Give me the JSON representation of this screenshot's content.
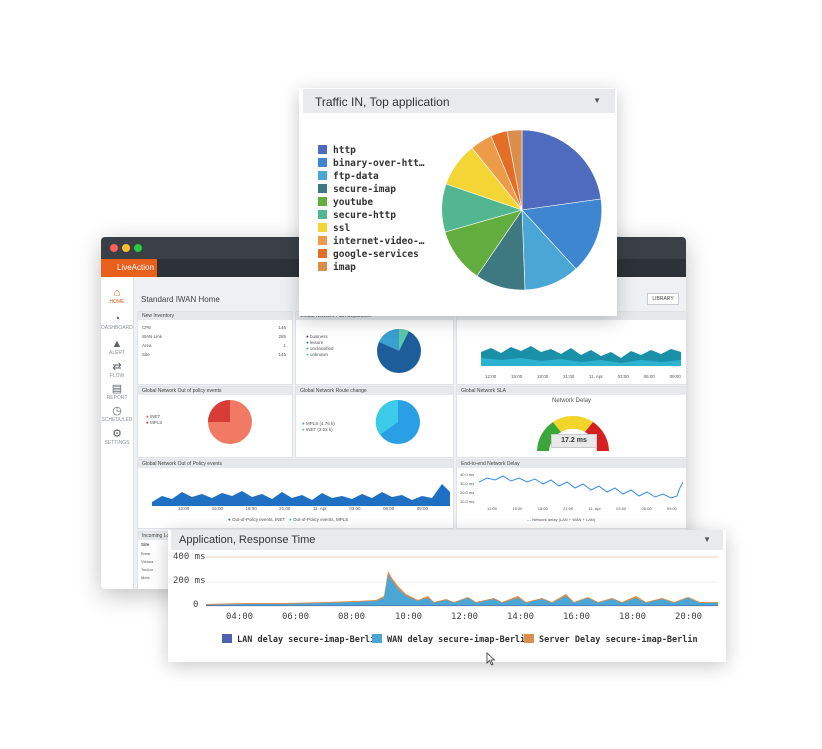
{
  "app": {
    "brand": "LiveAction",
    "page_title": "Standard IWAN Home",
    "library_button": "LIBRARY",
    "nav": [
      {
        "label": "HOME",
        "icon": "home-icon"
      },
      {
        "label": "DASHBOARD",
        "icon": "dashboard-icon"
      },
      {
        "label": "ALERT",
        "icon": "alert-icon"
      },
      {
        "label": "FLOW",
        "icon": "flow-icon"
      },
      {
        "label": "REPORT",
        "icon": "report-icon"
      },
      {
        "label": "SCHEDULED",
        "icon": "clock-icon"
      },
      {
        "label": "SETTINGS",
        "icon": "settings-icon"
      }
    ]
  },
  "inventory": {
    "title": "New Inventory",
    "rows": [
      {
        "label": "CPE",
        "value": "146"
      },
      {
        "label": "WAN Link",
        "value": "285"
      },
      {
        "label": "Area",
        "value": "1"
      },
      {
        "label": "Site",
        "value": "145"
      }
    ]
  },
  "panels": {
    "seg_title": "Global Network Path Separation",
    "seg_legend": [
      "business",
      "leisure",
      "unclassified",
      "unknown"
    ],
    "seg_x": [
      "12:00",
      "15:00",
      "18:00",
      "21:00",
      "11. Apr",
      "03:00",
      "06:00",
      "09:00"
    ],
    "policy_title": "Global Network Out of policy events",
    "policy_legend": [
      "INET",
      "MPLS"
    ],
    "route_title": "Global Network Route change",
    "route_legend": [
      "MPLS (4.76 k)",
      "INET (3.02 k)"
    ],
    "sla_title": "Global Network SLA",
    "sla_gauge_title": "Network Delay",
    "sla_value": "17.2 ms",
    "oop_title": "Global Network Out of Policy events",
    "oop_x": [
      "12:00",
      "15:00",
      "18:00",
      "21:00",
      "11. Apr",
      "03:00",
      "06:00",
      "09:00"
    ],
    "oop_legend": [
      "Out-of-Policy events, INET",
      "Out-of-Policy events, MPLS"
    ],
    "e2e_title": "End-to-end Network Delay",
    "e2e_y": [
      "40.0 ms",
      "30.0 ms",
      "20.0 ms",
      "10.0 ms"
    ],
    "e2e_x": [
      "12:00",
      "15:00",
      "18:00",
      "21:00",
      "11. Apr",
      "03:00",
      "06:00",
      "09:00"
    ],
    "e2e_legend": "Network delay (LAN + WAN + LAN)",
    "incoming_title": "Incoming Lo...",
    "incoming_header": "Site",
    "incoming_rows": [
      "Brest",
      "Vienna",
      "Toulon",
      "Metz"
    ]
  },
  "traffic_card": {
    "title": "Traffic IN, Top application",
    "legend": [
      {
        "label": "http",
        "color": "#4e6bbd"
      },
      {
        "label": "binary-over-htt…",
        "color": "#3f86d0"
      },
      {
        "label": "ftp-data",
        "color": "#4aa6d4"
      },
      {
        "label": "secure-imap",
        "color": "#3e7880"
      },
      {
        "label": "youtube",
        "color": "#62ad3e"
      },
      {
        "label": "secure-http",
        "color": "#52b691"
      },
      {
        "label": "ssl",
        "color": "#f3d535"
      },
      {
        "label": "internet-video-…",
        "color": "#ec9c49"
      },
      {
        "label": "google-services",
        "color": "#e46d28"
      },
      {
        "label": "imap",
        "color": "#d98e4e"
      }
    ]
  },
  "response_card": {
    "title": "Application, Response Time",
    "y_ticks": [
      "400 ms",
      "200 ms",
      "0"
    ],
    "x_ticks": [
      "04:00",
      "06:00",
      "08:00",
      "10:00",
      "12:00",
      "14:00",
      "16:00",
      "18:00",
      "20:00"
    ],
    "legend": [
      {
        "label": "LAN delay secure-imap-Berlin",
        "color": "#4e62ad"
      },
      {
        "label": "WAN delay secure-imap-Berlin",
        "color": "#4aa6d4"
      },
      {
        "label": "Server Delay secure-imap-Berlin",
        "color": "#d98e4e"
      }
    ]
  }
}
